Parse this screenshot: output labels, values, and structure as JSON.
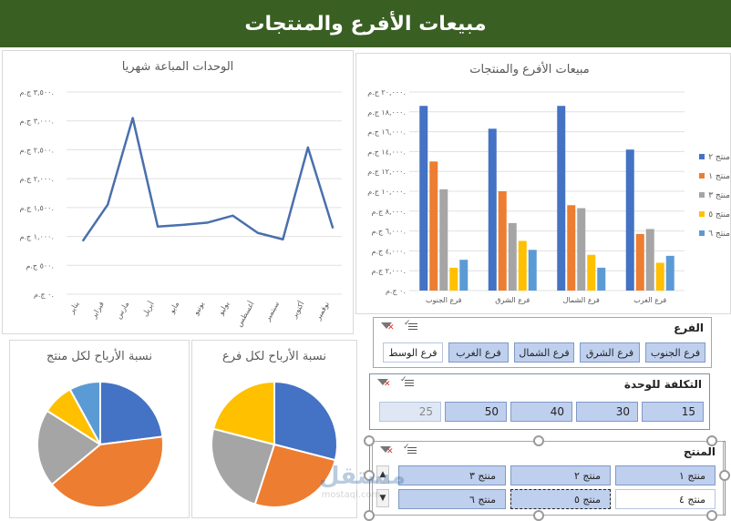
{
  "dashboard": {
    "title": "مبيعات الأفرع والمنتجات"
  },
  "colors": {
    "blue": "#4472c4",
    "orange": "#ed7d31",
    "gray": "#a5a5a5",
    "yellow": "#ffc000",
    "lightblue": "#5b9bd5",
    "title_bg": "#3a5f23",
    "line": "#4a6fad"
  },
  "icons": {
    "multi_select": "multi-select-icon",
    "clear_filter": "clear-filter-icon",
    "scroll_up": "chevron-up-icon",
    "scroll_down": "chevron-down-icon"
  },
  "line_chart": {
    "title": "الوحدات المباعة شهريا",
    "y_ticks": [
      "٠ ج.م.",
      "٥٠٠ ج.م.",
      "١,٠٠٠ ج.م.",
      "١,٥٠٠ ج.م.",
      "٢,٠٠٠ ج.م.",
      "٢,٥٠٠ ج.م.",
      "٣,٠٠٠ ج.م.",
      "٣,٥٠٠ ج.م."
    ],
    "months": [
      "يناير",
      "فبراير",
      "مارس",
      "أبريل",
      "مايو",
      "يونيو",
      "يوليو",
      "أغسطس",
      "سبتمبر",
      "أكتوبر",
      "نوفمبر"
    ]
  },
  "bar_chart": {
    "title": "مبيعات الأفرع والمنتجات",
    "y_ticks": [
      "٠ ج.م.",
      "٢,٠٠٠ ج.م.",
      "٤,٠٠٠ ج.م.",
      "٦,٠٠٠ ج.م.",
      "٨,٠٠٠ ج.م.",
      "١٠,٠٠٠ ج.م.",
      "١٢,٠٠٠ ج.م.",
      "١٤,٠٠٠ ج.م.",
      "١٦,٠٠٠ ج.م.",
      "١٨,٠٠٠ ج.م.",
      "٢٠,٠٠٠ ج.م."
    ],
    "legend": [
      "منتج ٢",
      "منتج ١",
      "منتج ٣",
      "منتج ٥",
      "منتج ٦"
    ]
  },
  "pie_branch": {
    "title": "نسبة الأرباح لكل فرع"
  },
  "pie_product": {
    "title": "نسبة الأرباح لكل منتج"
  },
  "chart_data": [
    {
      "type": "line",
      "title": "الوحدات المباعة شهريا",
      "categories": [
        "يناير",
        "فبراير",
        "مارس",
        "أبريل",
        "مايو",
        "يونيو",
        "يوليو",
        "أغسطس",
        "سبتمبر",
        "أكتوبر",
        "نوفمبر"
      ],
      "values": [
        920,
        1550,
        3050,
        1170,
        1200,
        1240,
        1360,
        1060,
        950,
        2540,
        1140
      ],
      "ylim": [
        0,
        3500
      ]
    },
    {
      "type": "bar",
      "title": "مبيعات الأفرع والمنتجات",
      "categories": [
        "فرع الجنوب",
        "فرع الشرق",
        "فرع الشمال",
        "فرع الغرب"
      ],
      "series": [
        {
          "name": "منتج ٢",
          "values": [
            18600,
            16300,
            18600,
            14200
          ]
        },
        {
          "name": "منتج ١",
          "values": [
            13000,
            10000,
            8600,
            5700
          ]
        },
        {
          "name": "منتج ٣",
          "values": [
            10200,
            6800,
            8300,
            6200
          ]
        },
        {
          "name": "منتج ٥",
          "values": [
            2300,
            5000,
            3600,
            2800
          ]
        },
        {
          "name": "منتج ٦",
          "values": [
            3100,
            4100,
            2300,
            3500
          ]
        }
      ],
      "ylim": [
        0,
        20000
      ]
    },
    {
      "type": "pie",
      "title": "نسبة الأرباح لكل فرع",
      "values": [
        29,
        26,
        24,
        21
      ]
    },
    {
      "type": "pie",
      "title": "نسبة الأرباح لكل منتج",
      "values": [
        23,
        41,
        20,
        8,
        8
      ]
    }
  ],
  "slicer_branch": {
    "header": "الفرع",
    "items": [
      "فرع الجنوب",
      "فرع الشرق",
      "فرع الشمال",
      "فرع الغرب",
      "فرع الوسط"
    ]
  },
  "slicer_cost": {
    "header": "التكلفة للوحدة",
    "items": [
      "15",
      "30",
      "40",
      "50",
      "25"
    ]
  },
  "slicer_product": {
    "header": "المنتج",
    "items": [
      "منتج ١",
      "منتج ٢",
      "منتج ٣",
      "منتج ٤",
      "منتج ٥",
      "منتج ٦"
    ]
  },
  "watermark": {
    "logo": "مستقل",
    "site": "mostaql.com"
  }
}
